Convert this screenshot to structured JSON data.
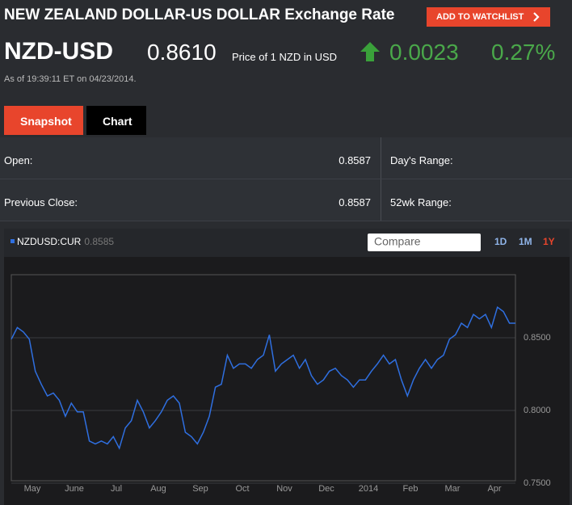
{
  "header": {
    "title": "NEW ZEALAND DOLLAR-US DOLLAR Exchange Rate",
    "watchlist_button": "ADD TO WATCHLIST"
  },
  "quote": {
    "symbol": "NZD-USD",
    "price": "0.8610",
    "price_note": "Price of 1 NZD in USD",
    "change": "0.0023",
    "change_percent": "0.27%",
    "timestamp": "As of 19:39:11 ET on 04/23/2014."
  },
  "tabs": [
    "Snapshot",
    "Chart"
  ],
  "stats": [
    {
      "label": "Open:",
      "value": "0.8587",
      "right_label": "Day's Range:"
    },
    {
      "label": "Previous Close:",
      "value": "0.8587",
      "right_label": "52wk Range:"
    }
  ],
  "chart_data": {
    "type": "line",
    "legend_last_value": "0.8585",
    "compare_placeholder": "Compare",
    "ranges": [
      "1D",
      "1M",
      "1Y"
    ],
    "x_labels": [
      "May",
      "June",
      "Jul",
      "Aug",
      "Sep",
      "Oct",
      "Nov",
      "Dec",
      "2014",
      "Feb",
      "Mar",
      "Apr"
    ],
    "series": [
      {
        "name": "NZDUSD:CUR",
        "color": "#2f6fe0",
        "values": [
          0.849,
          0.857,
          0.854,
          0.849,
          0.827,
          0.818,
          0.81,
          0.812,
          0.807,
          0.796,
          0.805,
          0.799,
          0.799,
          0.779,
          0.777,
          0.779,
          0.777,
          0.782,
          0.774,
          0.788,
          0.793,
          0.807,
          0.799,
          0.788,
          0.793,
          0.799,
          0.807,
          0.81,
          0.805,
          0.785,
          0.782,
          0.777,
          0.785,
          0.796,
          0.816,
          0.818,
          0.838,
          0.829,
          0.832,
          0.832,
          0.829,
          0.835,
          0.838,
          0.852,
          0.827,
          0.832,
          0.835,
          0.838,
          0.829,
          0.835,
          0.824,
          0.818,
          0.821,
          0.827,
          0.829,
          0.824,
          0.821,
          0.816,
          0.821,
          0.821,
          0.827,
          0.832,
          0.838,
          0.832,
          0.835,
          0.821,
          0.81,
          0.821,
          0.829,
          0.835,
          0.829,
          0.835,
          0.838,
          0.849,
          0.852,
          0.86,
          0.857,
          0.866,
          0.863,
          0.866,
          0.857,
          0.871,
          0.868,
          0.86,
          0.86
        ]
      }
    ],
    "ylim": [
      0.7517,
      0.8933
    ],
    "yticks": [
      {
        "value": 0.75,
        "label": "0.7500"
      },
      {
        "value": 0.8,
        "label": "0.8000"
      },
      {
        "value": 0.85,
        "label": "0.8500"
      }
    ],
    "grid": true,
    "active_range": "1Y"
  }
}
